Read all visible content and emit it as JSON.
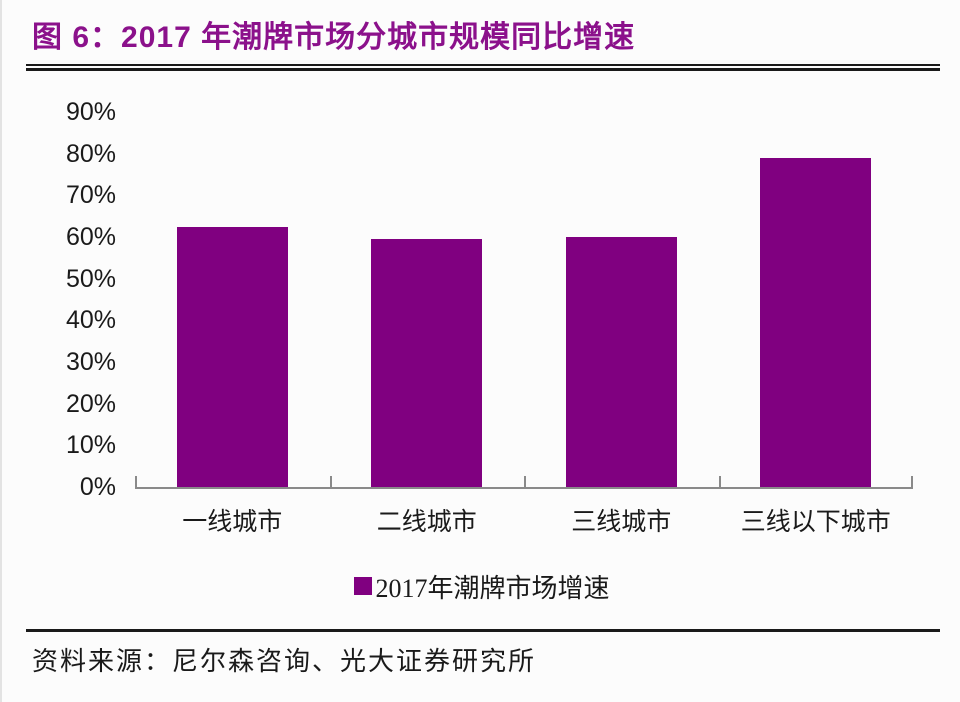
{
  "header": {
    "title": "图 6：2017 年潮牌市场分城市规模同比增速"
  },
  "chart_data": {
    "type": "bar",
    "title": "2017 年潮牌市场分城市规模同比增速",
    "categories": [
      "一线城市",
      "二线城市",
      "三线城市",
      "三线以下城市"
    ],
    "values": [
      62.5,
      59.5,
      60,
      79
    ],
    "value_unit": "percent",
    "xlabel": "",
    "ylabel": "",
    "ylim": [
      0,
      90
    ],
    "ytick_step": 10,
    "ytick_labels": [
      "0%",
      "10%",
      "20%",
      "30%",
      "40%",
      "50%",
      "60%",
      "70%",
      "80%",
      "90%"
    ],
    "grid": false,
    "legend_position": "bottom",
    "legend_entries": [
      "2017年潮牌市场增速"
    ],
    "bar_color": "#800080",
    "axis_color": "#8a8a8a"
  },
  "legend": {
    "label": "2017年潮牌市场增速",
    "swatch_color": "#800080"
  },
  "footer": {
    "source_label": "资料来源：尼尔森咨询、光大证券研究所"
  },
  "colors": {
    "title": "#8B118B",
    "text": "#1a1a1a",
    "rule": "#1a1a1a"
  }
}
